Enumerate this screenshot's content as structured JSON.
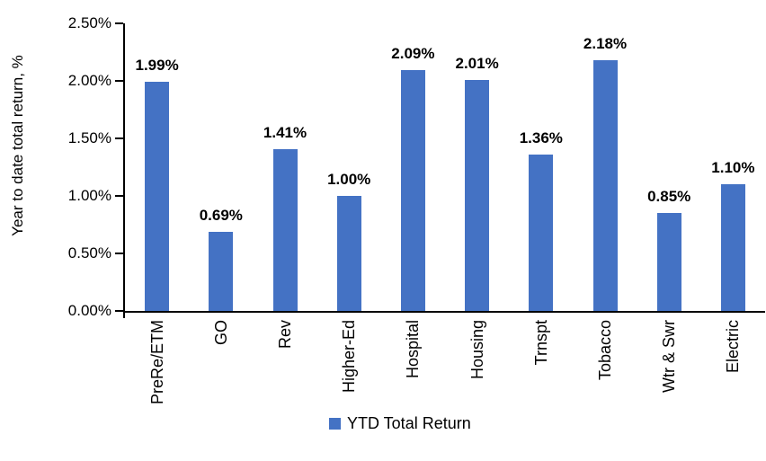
{
  "chart_data": {
    "type": "bar",
    "title": "",
    "xlabel": "",
    "ylabel": "Year to date total return, %",
    "categories": [
      "PreRe/ETM",
      "GO",
      "Rev",
      "Higher-Ed",
      "Hospital",
      "Housing",
      "Trnspt",
      "Tobacco",
      "Wtr & Swr",
      "Electric"
    ],
    "values": [
      1.99,
      0.69,
      1.41,
      1.0,
      2.09,
      2.01,
      1.36,
      2.18,
      0.85,
      1.1
    ],
    "data_labels": [
      "1.99%",
      "0.69%",
      "1.41%",
      "1.00%",
      "2.09%",
      "2.01%",
      "1.36%",
      "2.18%",
      "0.85%",
      "1.10%"
    ],
    "y_ticks": [
      {
        "label": "0.00%",
        "value": 0
      },
      {
        "label": "0.50%",
        "value": 0.5
      },
      {
        "label": "1.00%",
        "value": 1
      },
      {
        "label": "1.50%",
        "value": 1.5
      },
      {
        "label": "2.00%",
        "value": 2
      },
      {
        "label": "2.50%",
        "value": 2.5
      }
    ],
    "ylim": [
      0,
      2.5
    ],
    "grid": false,
    "legend": {
      "label": "YTD Total Return",
      "position": "bottom"
    },
    "colors": {
      "bar": "#4472C4",
      "axis": "#000000",
      "text": "#000000"
    }
  }
}
